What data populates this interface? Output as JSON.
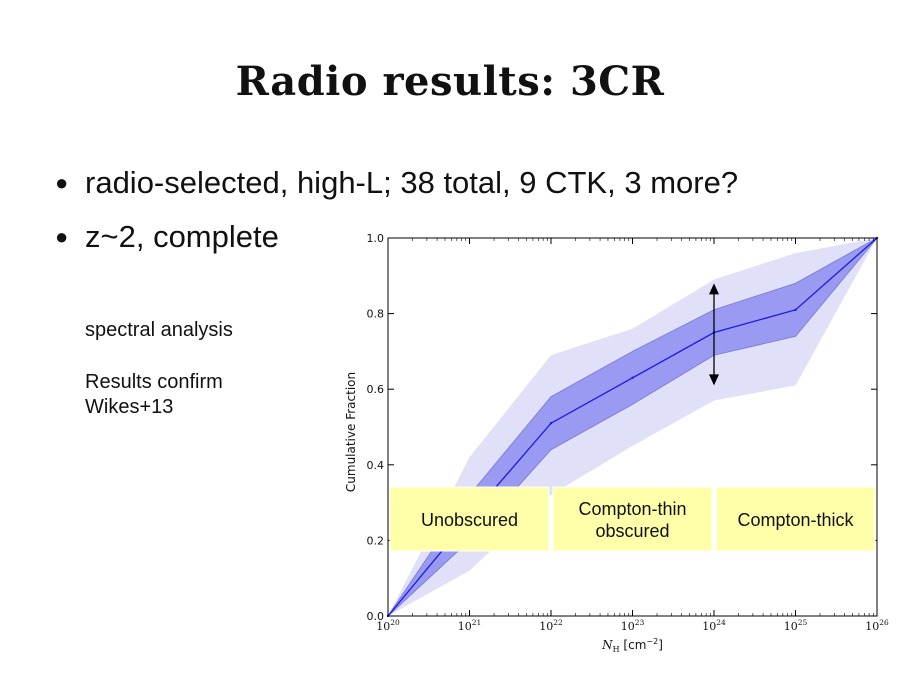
{
  "slide": {
    "title": "Radio results: 3CR",
    "bullets": [
      "radio-selected, high-L; 38 total, 9 CTK, 3 more?",
      "z~2, complete"
    ],
    "note_lines": [
      "spectral analysis",
      "",
      "Results confirm",
      "Wikes+13"
    ]
  },
  "chart_data": {
    "type": "line",
    "xlabel_parts": [
      "N",
      "H",
      " [cm",
      "−2",
      "]"
    ],
    "ylabel": "Cumulative Fraction",
    "x_scale": "log",
    "xlim": [
      1e+20,
      1e+26
    ],
    "ylim": [
      0.0,
      1.0
    ],
    "x_ticks": [
      {
        "base": "10",
        "exp": "20",
        "value": 20
      },
      {
        "base": "10",
        "exp": "21",
        "value": 21
      },
      {
        "base": "10",
        "exp": "22",
        "value": 22
      },
      {
        "base": "10",
        "exp": "23",
        "value": 23
      },
      {
        "base": "10",
        "exp": "24",
        "value": 24
      },
      {
        "base": "10",
        "exp": "25",
        "value": 25
      },
      {
        "base": "10",
        "exp": "26",
        "value": 26
      }
    ],
    "y_ticks": [
      "0.0",
      "0.2",
      "0.4",
      "0.6",
      "0.8",
      "1.0"
    ],
    "series": [
      {
        "log_x": [
          20,
          21,
          22,
          23,
          24,
          25,
          26
        ],
        "values": [
          0.0,
          0.26,
          0.51,
          0.63,
          0.75,
          0.81,
          1.0
        ]
      }
    ],
    "inner_band": {
      "log_x": [
        20,
        21,
        22,
        23,
        24,
        25,
        26
      ],
      "lower": [
        0.0,
        0.2,
        0.44,
        0.56,
        0.69,
        0.74,
        1.0
      ],
      "upper": [
        0.0,
        0.32,
        0.58,
        0.7,
        0.81,
        0.88,
        1.0
      ]
    },
    "outer_band": {
      "log_x": [
        20,
        21,
        22,
        23,
        24,
        25,
        26
      ],
      "lower": [
        0.0,
        0.12,
        0.32,
        0.45,
        0.57,
        0.61,
        1.0
      ],
      "upper": [
        0.0,
        0.42,
        0.69,
        0.76,
        0.89,
        0.96,
        1.0
      ]
    },
    "arrow": {
      "log_x": 24,
      "y_from": 0.61,
      "y_to": 0.88
    },
    "region_labels": [
      {
        "lines": [
          "Unobscured"
        ],
        "from": 20,
        "to": 22
      },
      {
        "lines": [
          "Compton-thin",
          "obscured"
        ],
        "from": 22,
        "to": 24
      },
      {
        "lines": [
          "Compton-thick"
        ],
        "from": 24,
        "to": 26
      }
    ],
    "colors": {
      "line": "#1a1ae6",
      "inner_band": "#9a9af2",
      "outer_band": "#e0e0f8",
      "label_box": "#ffffaa"
    },
    "grid": false
  }
}
